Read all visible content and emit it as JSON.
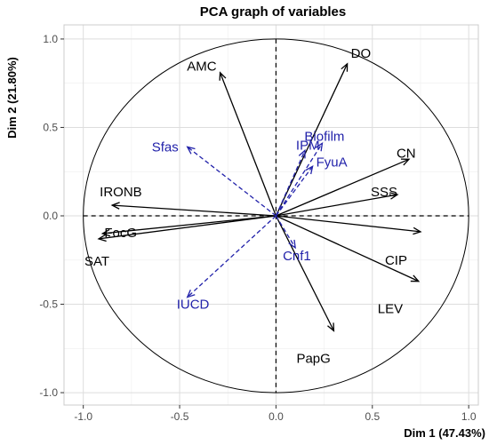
{
  "chart_data": {
    "type": "scatter",
    "title": "PCA graph of variables",
    "xlabel": "Dim 1 (47.43%)",
    "ylabel": "Dim 2 (21.80%)",
    "xlim": [
      -1.1,
      1.05
    ],
    "ylim": [
      -1.07,
      1.08
    ],
    "xticks": [
      "-1.0",
      "-0.5",
      "0.0",
      "0.5",
      "1.0"
    ],
    "yticks": [
      "-1.0",
      "-0.5",
      "0.0",
      "0.5",
      "1.0"
    ],
    "xtick_values": [
      -1.0,
      -0.5,
      0.0,
      0.5,
      1.0
    ],
    "ytick_values": [
      -1.0,
      -0.5,
      0.0,
      0.5,
      1.0
    ],
    "grid": true,
    "colors": {
      "active": "#000000",
      "supplementary": "#2222aa"
    },
    "active_variables": [
      {
        "name": "DO",
        "x": 0.37,
        "y": 0.86
      },
      {
        "name": "AMC",
        "x": -0.29,
        "y": 0.81
      },
      {
        "name": "CN",
        "x": 0.69,
        "y": 0.32
      },
      {
        "name": "SSS",
        "x": 0.63,
        "y": 0.12
      },
      {
        "name": "CIP",
        "x": 0.75,
        "y": -0.09
      },
      {
        "name": "LEV",
        "x": 0.74,
        "y": -0.37
      },
      {
        "name": "PapG",
        "x": 0.3,
        "y": -0.65
      },
      {
        "name": "IRONB",
        "x": -0.85,
        "y": 0.06
      },
      {
        "name": "FocG",
        "x": -0.9,
        "y": -0.1
      },
      {
        "name": "SAT",
        "x": -0.92,
        "y": -0.13
      }
    ],
    "supplementary_variables": [
      {
        "name": "Sfas",
        "x": -0.46,
        "y": 0.39
      },
      {
        "name": "IPM",
        "x": 0.15,
        "y": 0.37
      },
      {
        "name": "Biofilm",
        "x": 0.24,
        "y": 0.41
      },
      {
        "name": "FyuA",
        "x": 0.19,
        "y": 0.28
      },
      {
        "name": "Cnf1",
        "x": 0.1,
        "y": -0.18
      },
      {
        "name": "IUCD",
        "x": -0.46,
        "y": -0.46
      }
    ]
  }
}
